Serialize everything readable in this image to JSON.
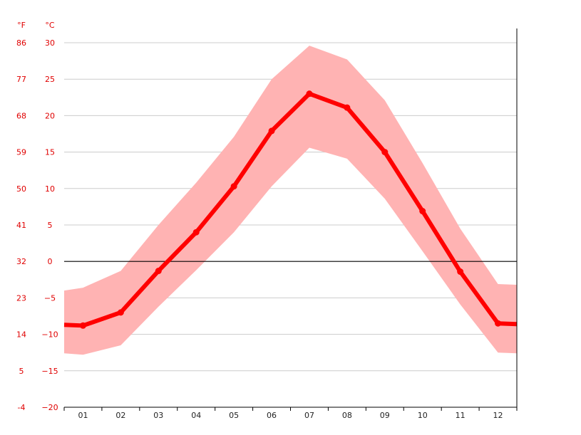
{
  "chart_data": {
    "type": "line",
    "title": "",
    "units": {
      "fahrenheit": "°F",
      "celsius": "°C"
    },
    "categories": [
      "01",
      "02",
      "03",
      "04",
      "05",
      "06",
      "07",
      "08",
      "09",
      "10",
      "11",
      "12"
    ],
    "y_celsius_ticks": [
      "30",
      "25",
      "20",
      "15",
      "10",
      "5",
      "0",
      "−5",
      "−10",
      "−15",
      "−20"
    ],
    "y_fahrenheit_ticks": [
      "86",
      "77",
      "68",
      "59",
      "50",
      "41",
      "32",
      "23",
      "14",
      "5",
      "-4"
    ],
    "ylim": [
      -20,
      30
    ],
    "grid": true,
    "zero_line": true,
    "series": [
      {
        "values": [
          -8.8,
          -7.0,
          -1.3,
          4.0,
          10.3,
          17.9,
          23.0,
          21.1,
          15.0,
          6.9,
          -1.4,
          -8.5
        ]
      }
    ],
    "band": {
      "upper": [
        -3.6,
        -1.3,
        5.0,
        10.8,
        17.1,
        25.0,
        29.6,
        27.7,
        22.1,
        13.5,
        4.5,
        -3.1
      ],
      "lower": [
        -12.8,
        -11.5,
        -6.2,
        -1.2,
        4.0,
        10.3,
        15.6,
        14.1,
        8.6,
        1.4,
        -5.9,
        -12.5
      ]
    },
    "colors": {
      "line": "#ff0000",
      "band": "#ffb3b3",
      "grid": "#cccccc",
      "zero": "#000000",
      "axis": "#000000",
      "tick_text": "#e00000",
      "x_text": "#222222"
    }
  }
}
